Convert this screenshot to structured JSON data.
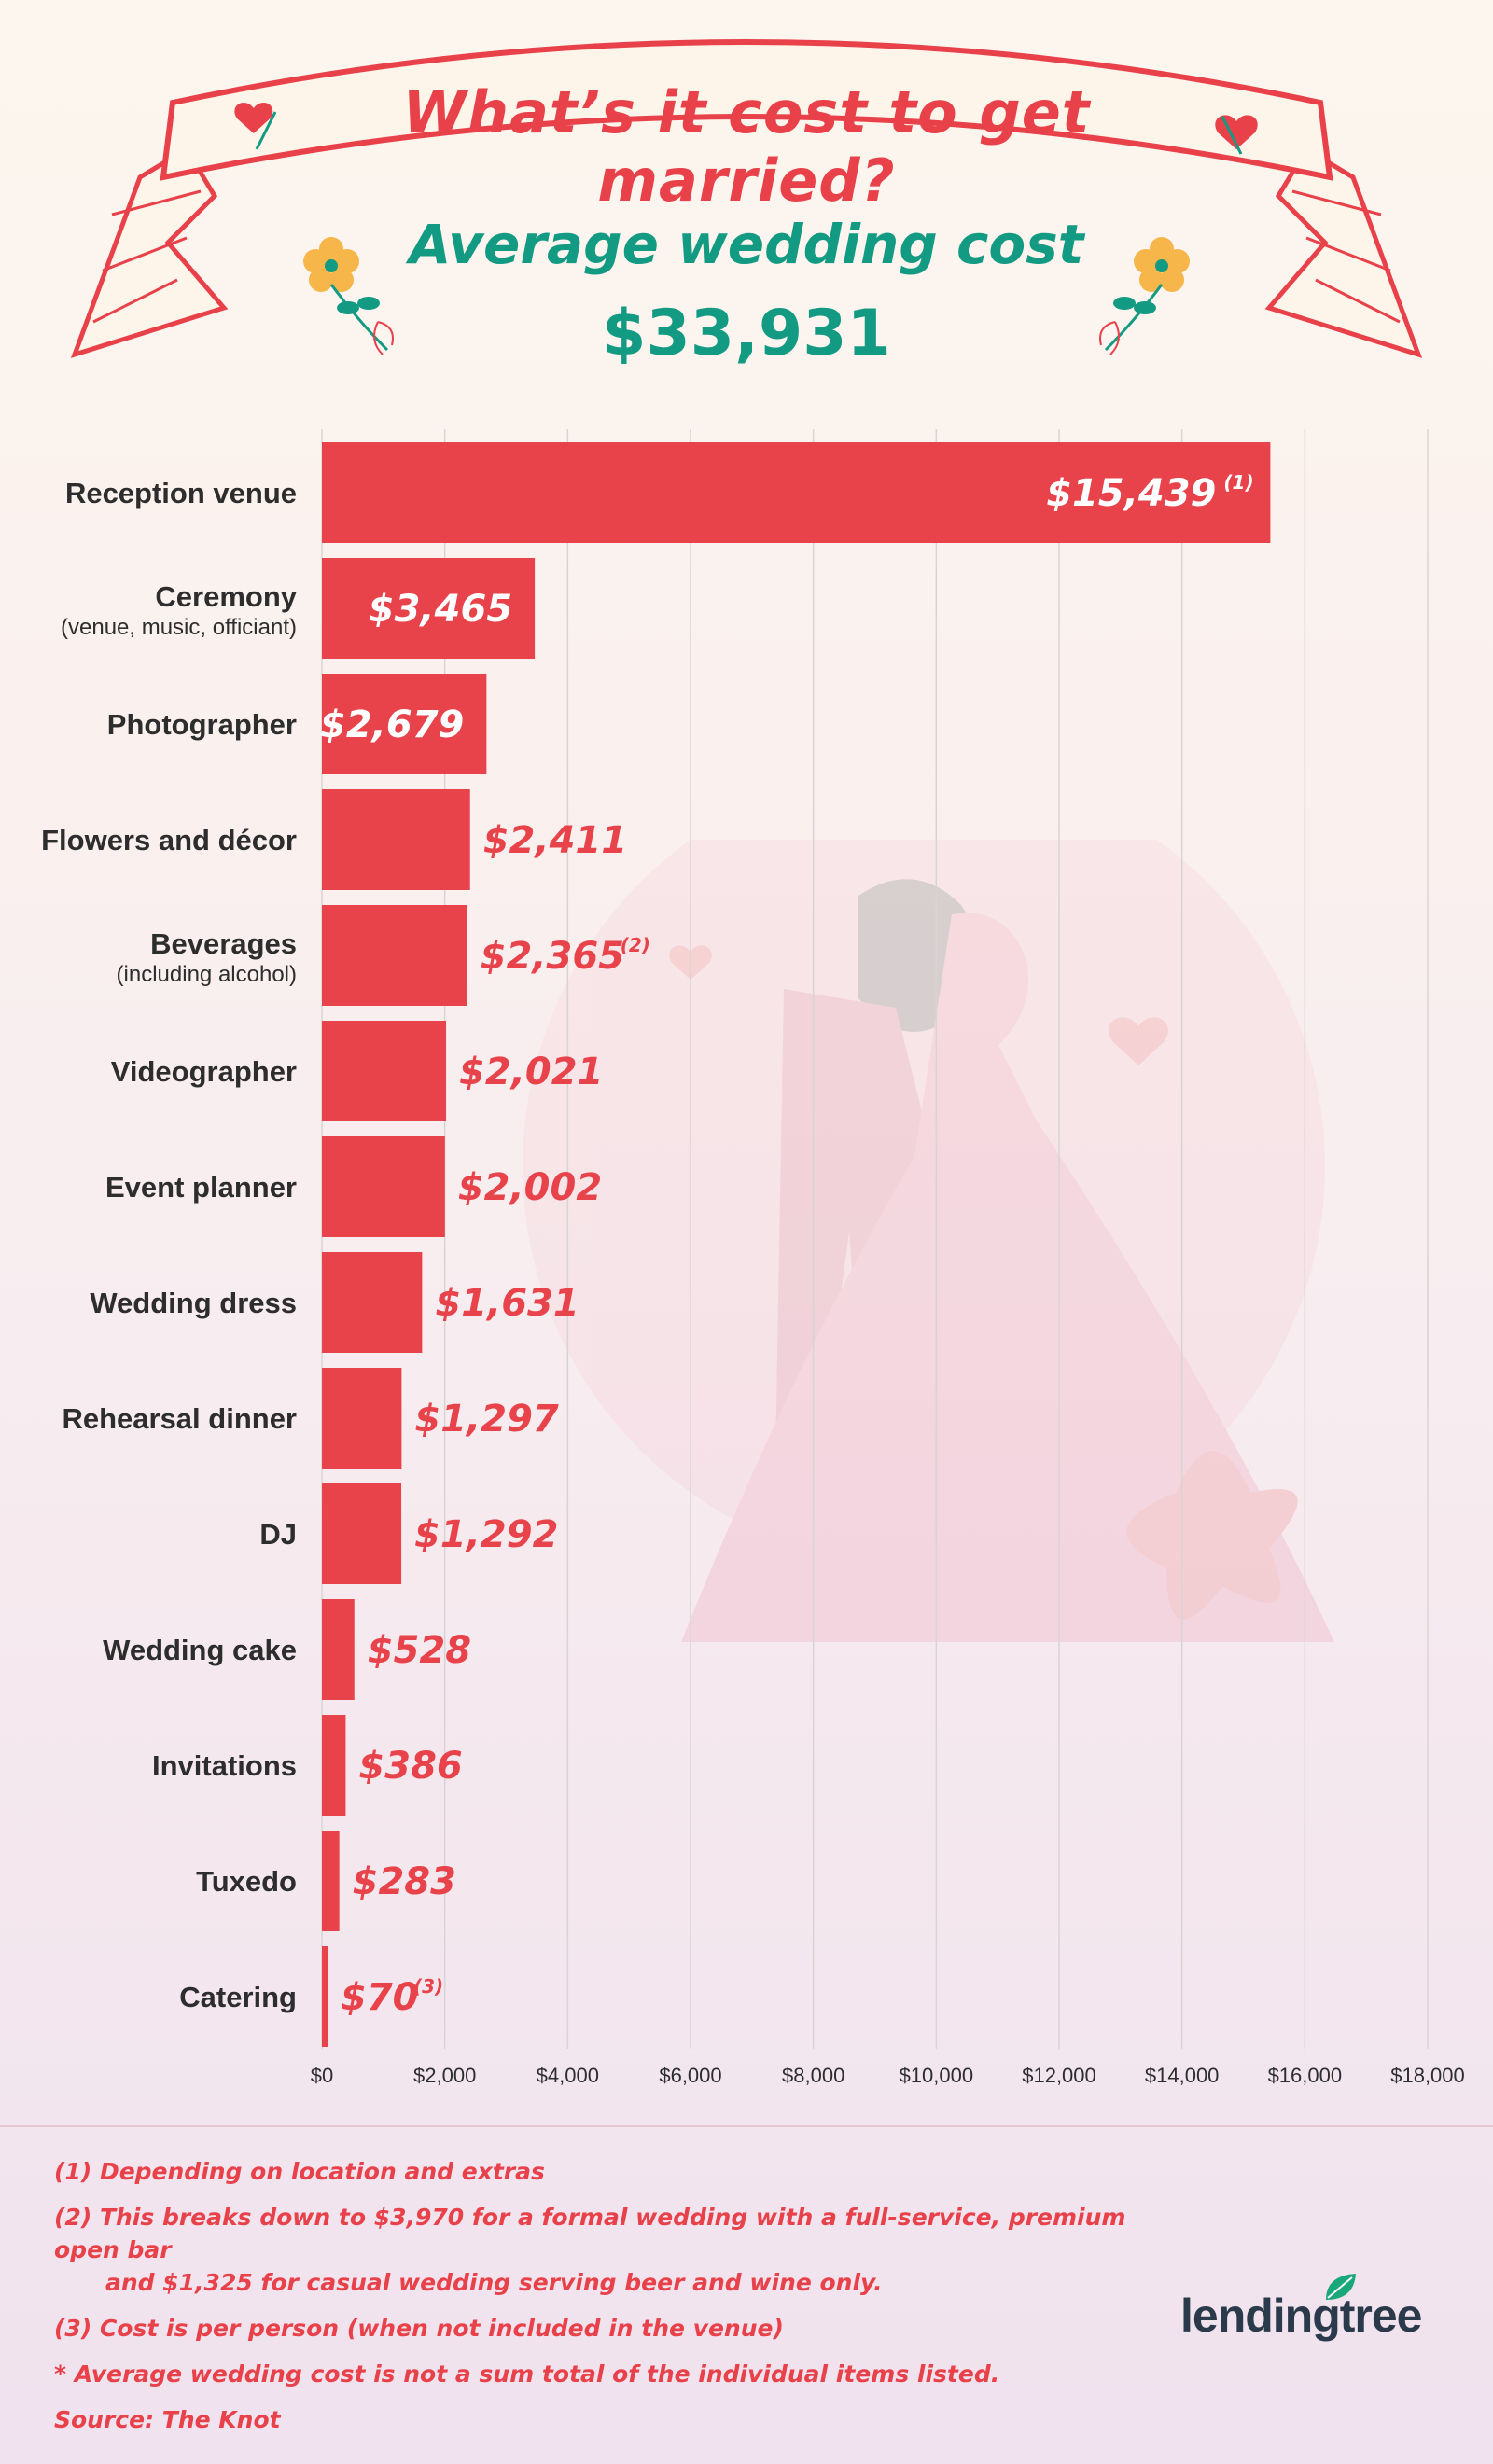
{
  "header": {
    "title": "What’s it cost to get married?",
    "avg_label": "Average wedding cost",
    "avg_value": "$33,931"
  },
  "colors": {
    "bar": "#e8434a",
    "value_text_inside": "#ffffff",
    "value_text_outside": "#e8434a",
    "headline": "#129a82",
    "title": "#e8414a"
  },
  "icons": [
    "ribbon-banner",
    "heart-icon",
    "flower-icon",
    "couple-illustration",
    "lendingtree-leaf-icon"
  ],
  "chart_data": {
    "type": "bar",
    "orientation": "horizontal",
    "categories": [
      "Reception venue",
      "Ceremony",
      "Photographer",
      "Flowers and décor",
      "Beverages",
      "Videographer",
      "Event planner",
      "Wedding dress",
      "Rehearsal dinner",
      "DJ",
      "Wedding cake",
      "Invitations",
      "Tuxedo",
      "Catering"
    ],
    "category_notes": [
      "",
      "(venue, music, officiant)",
      "",
      "",
      "(including alcohol)",
      "",
      "",
      "",
      "",
      "",
      "",
      "",
      "",
      ""
    ],
    "values": [
      15439,
      3465,
      2679,
      2411,
      2365,
      2021,
      2002,
      1631,
      1297,
      1292,
      528,
      386,
      283,
      70
    ],
    "value_labels": [
      "$15,439",
      "$3,465",
      "$2,679",
      "$2,411",
      "$2,365",
      "$2,021",
      "$2,002",
      "$1,631",
      "$1,297",
      "$1,292",
      "$528",
      "$386",
      "$283",
      "$70"
    ],
    "footnote_marks": [
      "(1)",
      "",
      "",
      "",
      "(2)",
      "",
      "",
      "",
      "",
      "",
      "",
      "",
      "",
      "(3)"
    ],
    "xlim": [
      0,
      18000
    ],
    "x_ticks": [
      0,
      2000,
      4000,
      6000,
      8000,
      10000,
      12000,
      14000,
      16000,
      18000
    ],
    "x_tick_labels": [
      "$0",
      "$2,000",
      "$4,000",
      "$6,000",
      "$8,000",
      "$10,000",
      "$12,000",
      "$14,000",
      "$16,000",
      "$18,000"
    ],
    "grid": true
  },
  "footnotes": {
    "n1": "(1) Depending on location and extras",
    "n2_line1": "(2) This breaks down to $3,970 for a formal wedding with a full-service, premium open bar",
    "n2_line2": "and $1,325 for casual wedding serving beer and wine only.",
    "n3": "(3) Cost is per person (when not included in the venue)",
    "n4": "* Average wedding cost is not a sum total of the individual items listed.",
    "source": "Source: The Knot"
  },
  "logo": {
    "text": "lendingtree"
  }
}
